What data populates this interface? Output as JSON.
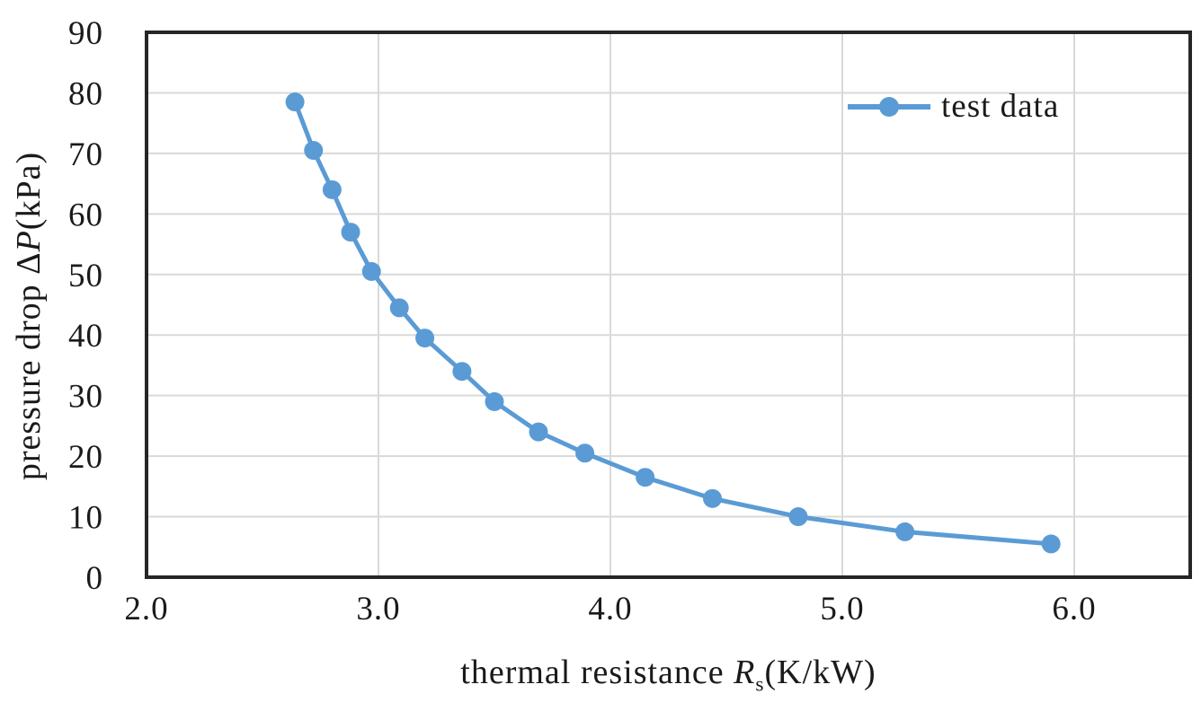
{
  "chart": {
    "colors": {
      "series": "#5b9bd5",
      "gridline": "#d9d9d9",
      "plot_border": "#262626",
      "text": "#1a1a1a",
      "background": "#ffffff"
    }
  },
  "chart_data": {
    "type": "line",
    "title": "",
    "xlabel": "thermal resistance Rs(K/kW)",
    "xlabel_parts": {
      "prefix": "thermal resistance ",
      "symbol": "R",
      "subscript": "s",
      "suffix": "(K/kW)"
    },
    "ylabel": "pressure drop ΔP(kPa)",
    "ylabel_parts": {
      "prefix": "pressure drop Δ",
      "symbol": "P",
      "suffix": "(kPa)"
    },
    "xlim": [
      2.0,
      6.5
    ],
    "ylim": [
      0,
      90
    ],
    "x_ticks": [
      "2.0",
      "3.0",
      "4.0",
      "5.0",
      "6.0"
    ],
    "x_tick_values": [
      2.0,
      3.0,
      4.0,
      5.0,
      6.0
    ],
    "y_ticks": [
      "90",
      "80",
      "70",
      "60",
      "50",
      "40",
      "30",
      "20",
      "10",
      "0"
    ],
    "y_tick_values": [
      90,
      80,
      70,
      60,
      50,
      40,
      30,
      20,
      10,
      0
    ],
    "grid": true,
    "legend_position": "top-right",
    "series": [
      {
        "name": "test data",
        "x": [
          2.64,
          2.72,
          2.8,
          2.88,
          2.97,
          3.09,
          3.2,
          3.36,
          3.5,
          3.69,
          3.89,
          4.15,
          4.44,
          4.81,
          5.27,
          5.9
        ],
        "y": [
          78.5,
          70.5,
          64.0,
          57.0,
          50.5,
          44.5,
          39.5,
          34.0,
          29.0,
          24.0,
          20.5,
          16.5,
          13.0,
          10.0,
          7.5,
          5.5
        ]
      }
    ]
  }
}
